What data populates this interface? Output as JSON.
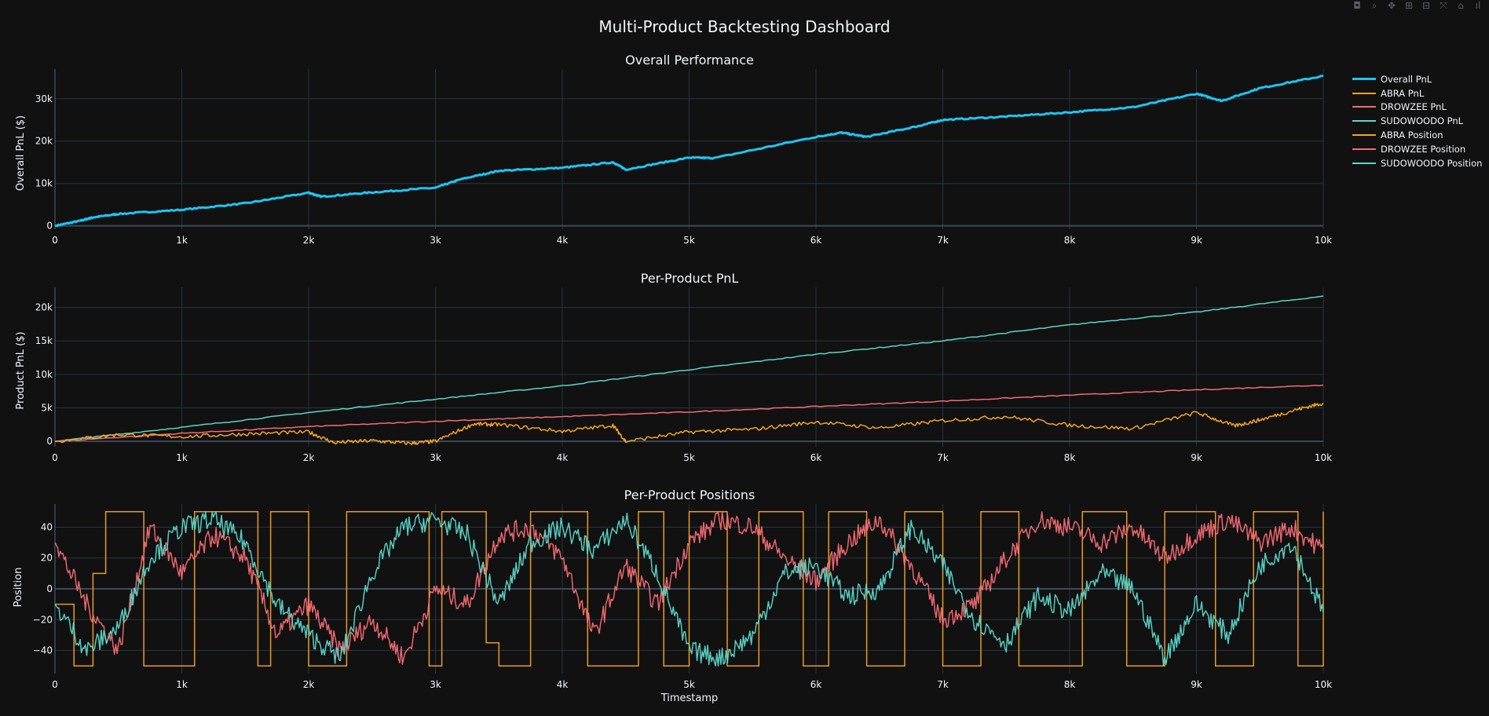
{
  "modebar": {
    "icons": [
      "camera-icon",
      "zoom-icon",
      "pan-icon",
      "zoom-in-icon",
      "zoom-out-icon",
      "autoscale-icon",
      "home-icon",
      "plotly-logo-icon"
    ],
    "glyphs": [
      "◘",
      "⌕",
      "✥",
      "⊞",
      "⊟",
      "⤧",
      "⌂",
      "ıl"
    ]
  },
  "chart_data": {
    "type": "line",
    "title": "Multi-Product Backtesting Dashboard",
    "grid": true,
    "legend_placement": "top-right",
    "legend": [
      {
        "name": "Overall PnL",
        "color": "#1fc3f0",
        "width": 3
      },
      {
        "name": "ABRA PnL",
        "color": "#f7a325",
        "width": 1.5
      },
      {
        "name": "DROWZEE PnL",
        "color": "#f56b74",
        "width": 1.5
      },
      {
        "name": "SUDOWOODO PnL",
        "color": "#5cd6c9",
        "width": 1.5
      },
      {
        "name": "ABRA Position",
        "color": "#f7a325",
        "width": 1.5
      },
      {
        "name": "DROWZEE Position",
        "color": "#f56b74",
        "width": 1.5
      },
      {
        "name": "SUDOWOODO Position",
        "color": "#5cd6c9",
        "width": 1.5
      }
    ],
    "subplots": [
      {
        "title": "Overall Performance",
        "xlabel": "",
        "ylabel": "Overall PnL ($)",
        "xlim": [
          0,
          10000
        ],
        "ylim": [
          -800,
          37000
        ],
        "xticks": [
          0,
          1000,
          2000,
          3000,
          4000,
          5000,
          6000,
          7000,
          8000,
          9000,
          10000
        ],
        "xtick_labels": [
          "0",
          "1k",
          "2k",
          "3k",
          "4k",
          "5k",
          "6k",
          "7k",
          "8k",
          "9k",
          "10k"
        ],
        "yticks": [
          0,
          10000,
          20000,
          30000
        ],
        "ytick_labels": [
          "0",
          "10k",
          "20k",
          "30k"
        ],
        "series": [
          {
            "name": "Overall PnL",
            "color": "#1fc3f0",
            "width": 3,
            "x": [
              0,
              200,
              300,
              500,
              1000,
              1500,
              2000,
              2100,
              2500,
              3000,
              3200,
              3500,
              4000,
              4400,
              4500,
              5000,
              5200,
              6000,
              6200,
              6400,
              6800,
              7000,
              7500,
              8000,
              8500,
              9000,
              9200,
              9500,
              10000
            ],
            "y": [
              0,
              1200,
              2000,
              2800,
              3800,
              5300,
              7800,
              6900,
              7900,
              9000,
              11000,
              13000,
              13700,
              15000,
              13300,
              16100,
              16000,
              21000,
              22000,
              21000,
              23500,
              25000,
              25800,
              26800,
              28000,
              31200,
              29500,
              32500,
              35400
            ]
          }
        ]
      },
      {
        "title": "Per-Product PnL",
        "xlabel": "",
        "ylabel": "Product PnL ($)",
        "xlim": [
          0,
          10000
        ],
        "ylim": [
          -800,
          23000
        ],
        "xticks": [
          0,
          1000,
          2000,
          3000,
          4000,
          5000,
          6000,
          7000,
          8000,
          9000,
          10000
        ],
        "xtick_labels": [
          "0",
          "1k",
          "2k",
          "3k",
          "4k",
          "5k",
          "6k",
          "7k",
          "8k",
          "9k",
          "10k"
        ],
        "yticks": [
          0,
          5000,
          10000,
          15000,
          20000
        ],
        "ytick_labels": [
          "0",
          "5k",
          "10k",
          "15k",
          "20k"
        ],
        "series": [
          {
            "name": "SUDOWOODO PnL",
            "color": "#5cd6c9",
            "width": 1.5,
            "x": [
              0,
              1000,
              2000,
              3000,
              4000,
              5000,
              6000,
              7000,
              8000,
              9000,
              10000
            ],
            "y": [
              0,
              2100,
              4300,
              6300,
              8300,
              10700,
              13000,
              15000,
              17400,
              19300,
              21700
            ]
          },
          {
            "name": "DROWZEE PnL",
            "color": "#f56b74",
            "width": 1.5,
            "x": [
              0,
              1000,
              2000,
              3000,
              4000,
              5000,
              6000,
              7000,
              8000,
              9000,
              10000
            ],
            "y": [
              0,
              1200,
              2200,
              3000,
              3700,
              4400,
              5200,
              6000,
              6900,
              7700,
              8400
            ]
          },
          {
            "name": "ABRA PnL",
            "color": "#f7a325",
            "width": 1.5,
            "x": [
              0,
              500,
              1000,
              1500,
              2000,
              2200,
              2500,
              2800,
              3000,
              3300,
              3500,
              4000,
              4400,
              4500,
              5000,
              5500,
              6000,
              6500,
              7000,
              7500,
              8000,
              8500,
              9000,
              9300,
              9500,
              9800,
              10000
            ],
            "y": [
              0,
              1000,
              700,
              1100,
              1400,
              -200,
              100,
              -300,
              0,
              2600,
              2500,
              1500,
              2400,
              0,
              1400,
              1800,
              2900,
              2000,
              3100,
              3700,
              2400,
              1900,
              4300,
              2300,
              3200,
              4800,
              5700
            ]
          }
        ]
      },
      {
        "title": "Per-Product Positions",
        "xlabel": "Timestamp",
        "ylabel": "Position",
        "xlim": [
          0,
          10000
        ],
        "ylim": [
          -55,
          55
        ],
        "xticks": [
          0,
          1000,
          2000,
          3000,
          4000,
          5000,
          6000,
          7000,
          8000,
          9000,
          10000
        ],
        "xtick_labels": [
          "0",
          "1k",
          "2k",
          "3k",
          "4k",
          "5k",
          "6k",
          "7k",
          "8k",
          "9k",
          "10k"
        ],
        "yticks": [
          -40,
          -20,
          0,
          20,
          40
        ],
        "ytick_labels": [
          "−40",
          "−20",
          "0",
          "20",
          "40"
        ],
        "series": [
          {
            "name": "ABRA Position",
            "color": "#f7a325",
            "width": 1.5,
            "step": true,
            "x": [
              0,
              150,
              300,
              400,
              700,
              1100,
              1600,
              1700,
              2000,
              2300,
              2950,
              3050,
              3400,
              3500,
              3750,
              4200,
              4600,
              4800,
              5000,
              5300,
              5550,
              5900,
              6100,
              6400,
              6700,
              7000,
              7300,
              7600,
              8100,
              8450,
              8750,
              9150,
              9450,
              9800,
              10000
            ],
            "y": [
              -10,
              -50,
              10,
              50,
              -50,
              50,
              -50,
              50,
              -50,
              50,
              -50,
              50,
              -35,
              -50,
              50,
              -50,
              50,
              -50,
              50,
              -50,
              50,
              -50,
              50,
              -50,
              50,
              -50,
              50,
              -50,
              50,
              -50,
              50,
              -50,
              50,
              -50,
              50
            ]
          },
          {
            "name": "DROWZEE Position",
            "color": "#f56b74",
            "width": 1.5,
            "x": [
              0,
              250,
              500,
              750,
              1000,
              1250,
              1500,
              1750,
              2000,
              2250,
              2500,
              2750,
              3000,
              3250,
              3500,
              3750,
              4000,
              4250,
              4500,
              4750,
              5000,
              5250,
              5500,
              5750,
              6000,
              6250,
              6500,
              6750,
              7000,
              7250,
              7500,
              7750,
              8000,
              8250,
              8500,
              8750,
              9000,
              9250,
              9500,
              9750,
              10000
            ],
            "y": [
              30,
              -10,
              -40,
              40,
              10,
              35,
              20,
              -30,
              -10,
              -40,
              -20,
              -45,
              0,
              -10,
              35,
              40,
              20,
              -30,
              15,
              -10,
              30,
              45,
              40,
              20,
              5,
              30,
              45,
              15,
              -20,
              -10,
              20,
              45,
              40,
              30,
              40,
              20,
              35,
              45,
              30,
              40,
              25
            ]
          },
          {
            "name": "SUDOWOODO Position",
            "color": "#5cd6c9",
            "width": 1.5,
            "x": [
              0,
              250,
              500,
              750,
              1000,
              1250,
              1500,
              1750,
              2000,
              2250,
              2500,
              2750,
              3000,
              3250,
              3500,
              3750,
              4000,
              4250,
              4500,
              4750,
              5000,
              5250,
              5500,
              5750,
              6000,
              6250,
              6500,
              6750,
              7000,
              7250,
              7500,
              7750,
              8000,
              8250,
              8500,
              8750,
              9000,
              9250,
              9500,
              9750,
              10000
            ],
            "y": [
              -10,
              -40,
              -25,
              20,
              40,
              45,
              30,
              -10,
              -30,
              -45,
              10,
              40,
              45,
              35,
              -10,
              30,
              40,
              25,
              45,
              10,
              -40,
              -45,
              -30,
              10,
              15,
              -5,
              0,
              40,
              15,
              -20,
              -35,
              -5,
              -15,
              10,
              0,
              -45,
              -10,
              -30,
              15,
              30,
              -15
            ]
          }
        ]
      }
    ]
  }
}
